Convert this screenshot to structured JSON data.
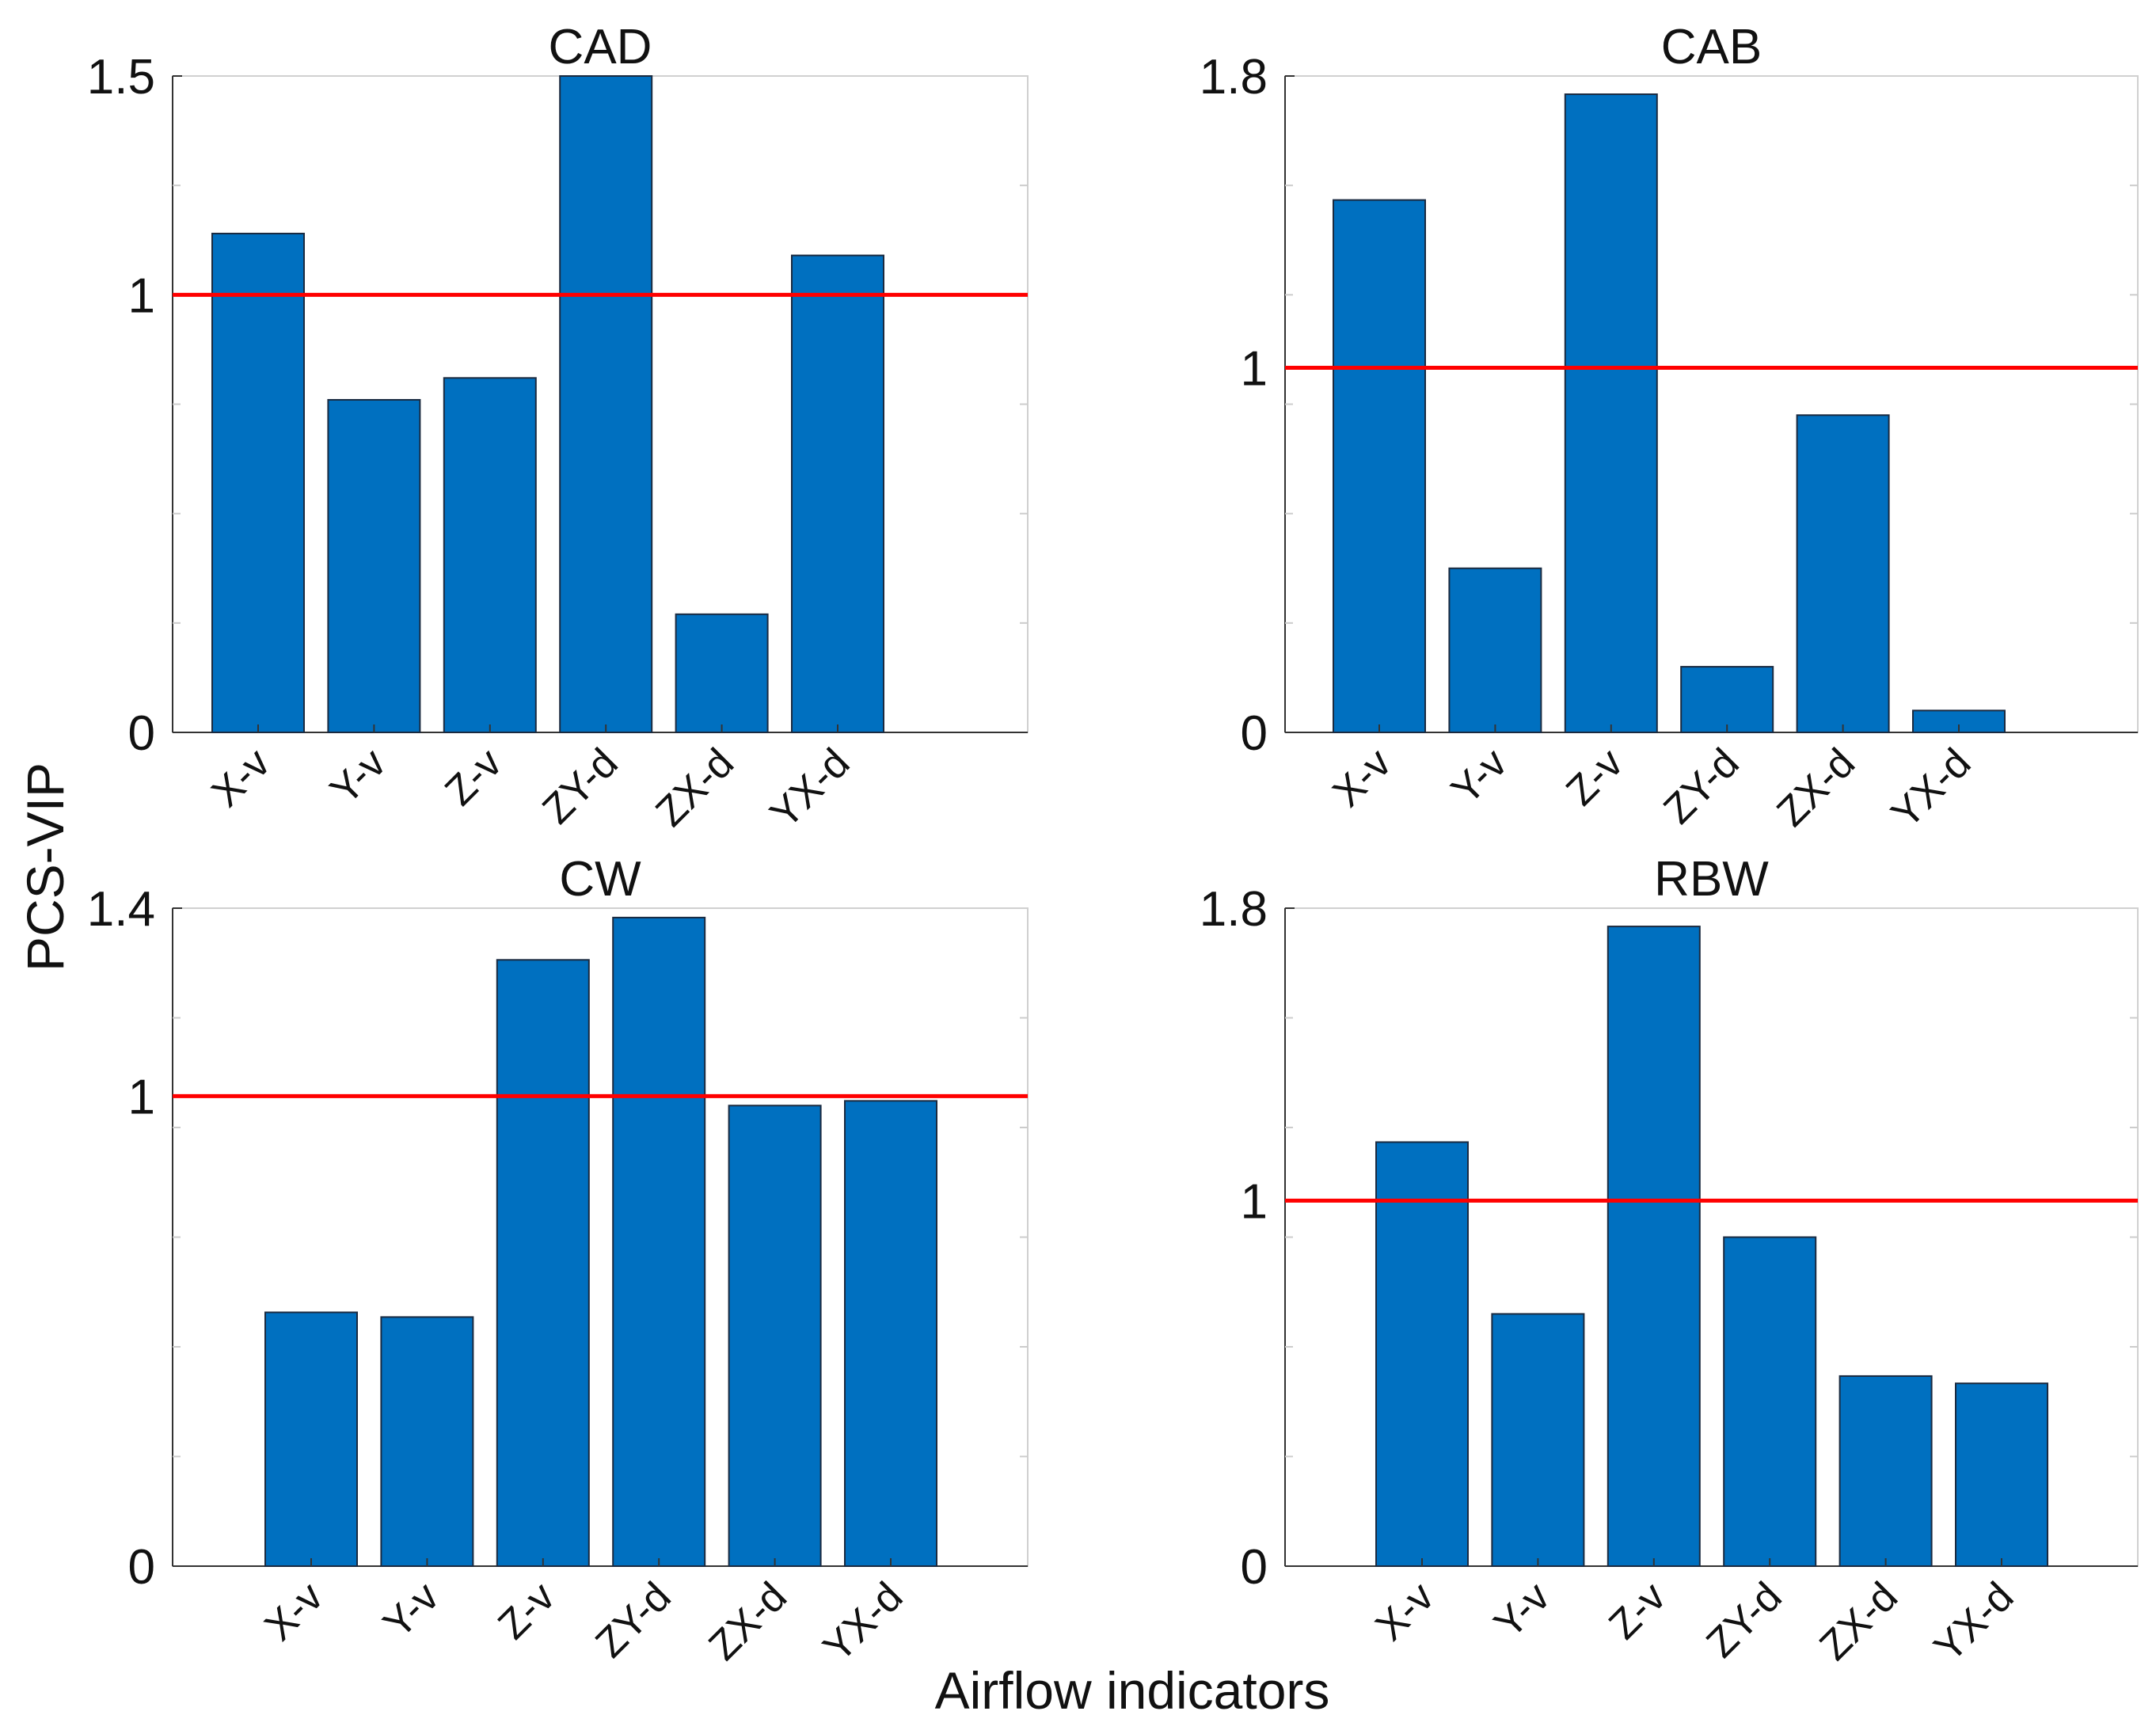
{
  "figure": {
    "ylabel": "PCS-VIP",
    "xlabel": "Airflow indicators"
  },
  "colors": {
    "bar": "#0070c0",
    "bar_edge": "#1a2a40",
    "threshold": "#ff0000",
    "axis": "#333333",
    "minor_tick": "#cccccc"
  },
  "chart_data": [
    {
      "type": "bar",
      "title": "CAD",
      "categories": [
        "X-v",
        "Y-v",
        "Z-v",
        "ZY-d",
        "ZX-d",
        "YX-d"
      ],
      "values": [
        1.14,
        0.76,
        0.81,
        1.5,
        0.27,
        1.09
      ],
      "ylim": [
        0,
        1.5
      ],
      "yticks": [
        0,
        1,
        1.5
      ],
      "yticklabels": [
        "0",
        "1",
        "1.5"
      ],
      "threshold": 1,
      "ylabel": "PCS-VIP",
      "xlabel": "Airflow indicators"
    },
    {
      "type": "bar",
      "title": "CAB",
      "categories": [
        "X-v",
        "Y-v",
        "Z-v",
        "ZY-d",
        "ZX-d",
        "YX-d"
      ],
      "values": [
        1.46,
        0.45,
        1.75,
        0.18,
        0.87,
        0.06
      ],
      "ylim": [
        0,
        1.8
      ],
      "yticks": [
        0,
        1,
        1.8
      ],
      "yticklabels": [
        "0",
        "1",
        "1.8"
      ],
      "threshold": 1,
      "ylabel": "PCS-VIP",
      "xlabel": "Airflow indicators"
    },
    {
      "type": "bar",
      "title": "CW",
      "categories": [
        "X-v",
        "Y-v",
        "Z-v",
        "ZY-d",
        "ZX-d",
        "YX-d"
      ],
      "values": [
        0.54,
        0.53,
        1.29,
        1.38,
        0.98,
        0.99
      ],
      "ylim": [
        0,
        1.4
      ],
      "yticks": [
        0,
        1,
        1.4
      ],
      "yticklabels": [
        "0",
        "1",
        "1.4"
      ],
      "threshold": 1,
      "ylabel": "PCS-VIP",
      "xlabel": "Airflow indicators"
    },
    {
      "type": "bar",
      "title": "RBW",
      "categories": [
        "X-v",
        "Y-v",
        "Z-v",
        "ZY-d",
        "ZX-d",
        "YX-d"
      ],
      "values": [
        1.16,
        0.69,
        1.75,
        0.9,
        0.52,
        0.5
      ],
      "ylim": [
        0,
        1.8
      ],
      "yticks": [
        0,
        1,
        1.8
      ],
      "yticklabels": [
        "0",
        "1",
        "1.8"
      ],
      "threshold": 1,
      "ylabel": "PCS-VIP",
      "xlabel": "Airflow indicators"
    }
  ]
}
